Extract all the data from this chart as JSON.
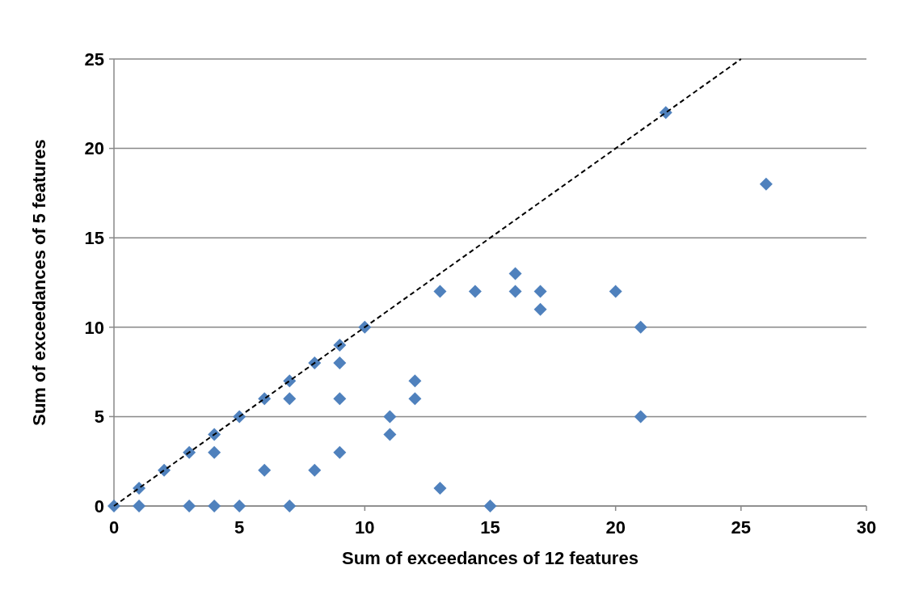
{
  "chart_data": {
    "type": "scatter",
    "xlabel": "Sum of exceedances of 12 features",
    "ylabel": "Sum of exceedances of 5 features",
    "xlim": [
      0,
      30
    ],
    "xticks": [
      0,
      5,
      10,
      15,
      20,
      25,
      30
    ],
    "ylim": [
      0,
      25
    ],
    "yticks": [
      0,
      5,
      10,
      15,
      20,
      25
    ],
    "grid": "y",
    "series": [
      {
        "color": "#4f81bd",
        "marker": "diamond",
        "x": [
          0,
          1,
          1,
          2,
          3,
          3,
          4,
          4,
          4,
          5,
          5,
          6,
          6,
          7,
          7,
          7,
          8,
          8,
          9,
          9,
          9,
          9,
          10,
          11,
          11,
          12,
          12,
          13,
          13,
          14.4,
          15,
          16,
          16,
          17,
          17,
          20,
          21,
          21,
          22,
          26
        ],
        "values": [
          0,
          1,
          0,
          2,
          3,
          0,
          4,
          3,
          0,
          5,
          0,
          6,
          2,
          7,
          6,
          0,
          8,
          2,
          9,
          8,
          6,
          3,
          10,
          5,
          4,
          7,
          6,
          12,
          1,
          12,
          0,
          13,
          12,
          12,
          11,
          12,
          10,
          5,
          22,
          18
        ]
      },
      {
        "type": "line",
        "color": "#000000",
        "marker": "none",
        "line_style": "dashed",
        "x": [
          0,
          25
        ],
        "values": [
          0,
          25
        ]
      }
    ]
  }
}
